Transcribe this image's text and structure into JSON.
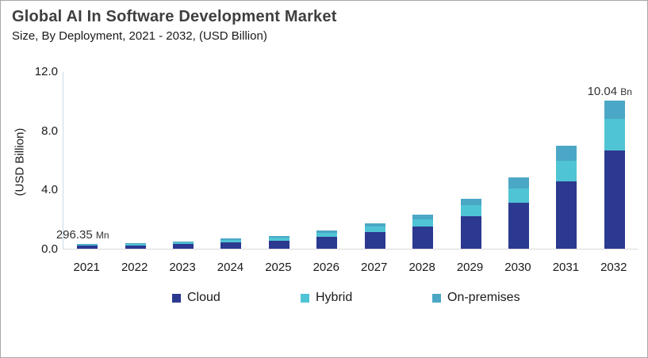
{
  "chart_data": {
    "type": "bar",
    "stacked": true,
    "title": "Global AI In Software Development Market",
    "subtitle": "Size, By Deployment, 2021 - 2032, (USD Billion)",
    "ylabel": "(USD Billion)",
    "ylim": [
      0,
      12
    ],
    "yticks": [
      0,
      4,
      8,
      12
    ],
    "ytick_labels": [
      "0.0",
      "4.0",
      "8.0",
      "12.0"
    ],
    "grid": false,
    "legend_position": "bottom",
    "categories": [
      "2021",
      "2022",
      "2023",
      "2024",
      "2025",
      "2026",
      "2027",
      "2028",
      "2029",
      "2030",
      "2031",
      "2032"
    ],
    "series": [
      {
        "name": "Cloud",
        "color": "#2B3990",
        "values": [
          0.19,
          0.24,
          0.31,
          0.44,
          0.56,
          0.8,
          1.1,
          1.51,
          2.19,
          3.12,
          4.53,
          6.63
        ]
      },
      {
        "name": "Hybrid",
        "color": "#4FC4D4",
        "values": [
          0.06,
          0.08,
          0.11,
          0.15,
          0.2,
          0.26,
          0.38,
          0.5,
          0.74,
          0.95,
          1.4,
          2.15
        ]
      },
      {
        "name": "On-premises",
        "color": "#4BA7C6",
        "values": [
          0.05,
          0.05,
          0.07,
          0.09,
          0.12,
          0.17,
          0.24,
          0.3,
          0.42,
          0.75,
          1.06,
          1.26
        ]
      }
    ],
    "totals": [
      0.3,
      0.37,
      0.49,
      0.68,
      0.88,
      1.23,
      1.72,
      2.31,
      3.35,
      4.82,
      6.99,
      10.04
    ],
    "annotations": [
      {
        "category": "2021",
        "value": "296.35",
        "unit": "Mn"
      },
      {
        "category": "2032",
        "value": "10.04",
        "unit": "Bn"
      }
    ],
    "colors": {
      "axis_line_y": "#c9daea",
      "axis_line_x": "#d9d9d9",
      "title_text": "#3f3f3f",
      "body_text": "#1a1a1a",
      "frame_border": "#a8a8a8"
    }
  }
}
